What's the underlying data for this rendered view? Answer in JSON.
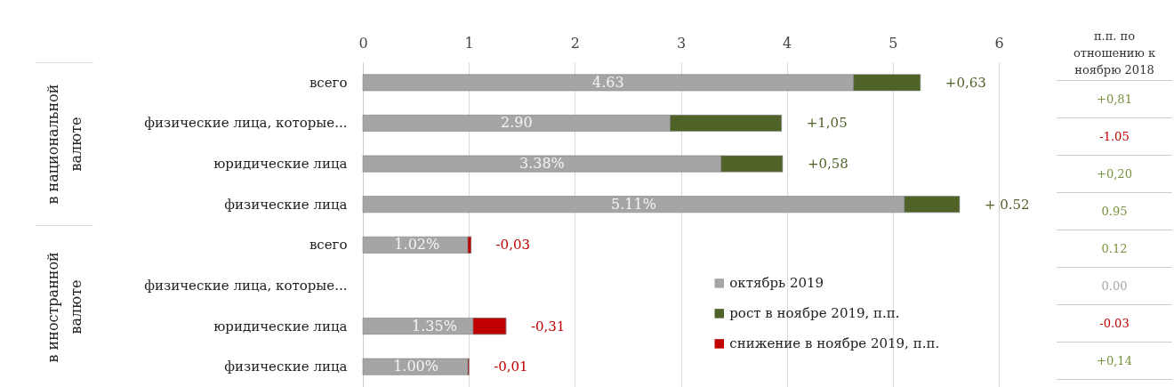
{
  "chart_data": {
    "type": "bar",
    "orientation": "horizontal",
    "categories": [
      "всего",
      "физические лица, которые...",
      "юридические лица",
      "физические лица",
      "всего",
      "физические лица, которые...",
      "юридические лица",
      "физические лица"
    ],
    "series": [
      {
        "name": "октябрь 2019",
        "color": "#a5a5a5",
        "values": [
          4.63,
          2.9,
          3.38,
          5.11,
          1.02,
          null,
          1.35,
          1.0
        ],
        "value_labels": [
          "4.63",
          "2.90",
          "3.38%",
          "5.11%",
          "1.02%",
          null,
          "1.35%",
          "1.00%"
        ]
      },
      {
        "name": "рост в ноябре 2019, п.п.",
        "color": "#4f6228",
        "values": [
          0.63,
          1.05,
          0.58,
          0.52,
          null,
          null,
          null,
          null
        ],
        "value_labels": [
          "+0,63",
          "+1,05",
          "+0,58",
          "+ 0.52",
          null,
          null,
          null,
          null
        ]
      },
      {
        "name": "снижение в ноябре 2019, п.п.",
        "color": "#c00000",
        "base": [
          null,
          null,
          null,
          null,
          1.02,
          null,
          1.35,
          1.0
        ],
        "values": [
          null,
          null,
          null,
          null,
          -0.03,
          null,
          -0.31,
          -0.01
        ],
        "value_labels": [
          null,
          null,
          null,
          null,
          "-0,03",
          null,
          "-0,31",
          "-0,01"
        ]
      }
    ],
    "stacked": true,
    "xlim": [
      0,
      6
    ],
    "xticks": [
      0,
      1,
      2,
      3,
      4,
      5,
      6
    ],
    "grid": "x",
    "legend": "bottom right",
    "annotations": [
      "в национальной валюте",
      "в иностранной валюте",
      "п.п. по отношению к ноябрю 2018",
      "+0,81",
      "-1.05",
      "+0,20",
      "0.95",
      "0.12",
      "0.00",
      "-0.03",
      "+0,14"
    ]
  }
}
